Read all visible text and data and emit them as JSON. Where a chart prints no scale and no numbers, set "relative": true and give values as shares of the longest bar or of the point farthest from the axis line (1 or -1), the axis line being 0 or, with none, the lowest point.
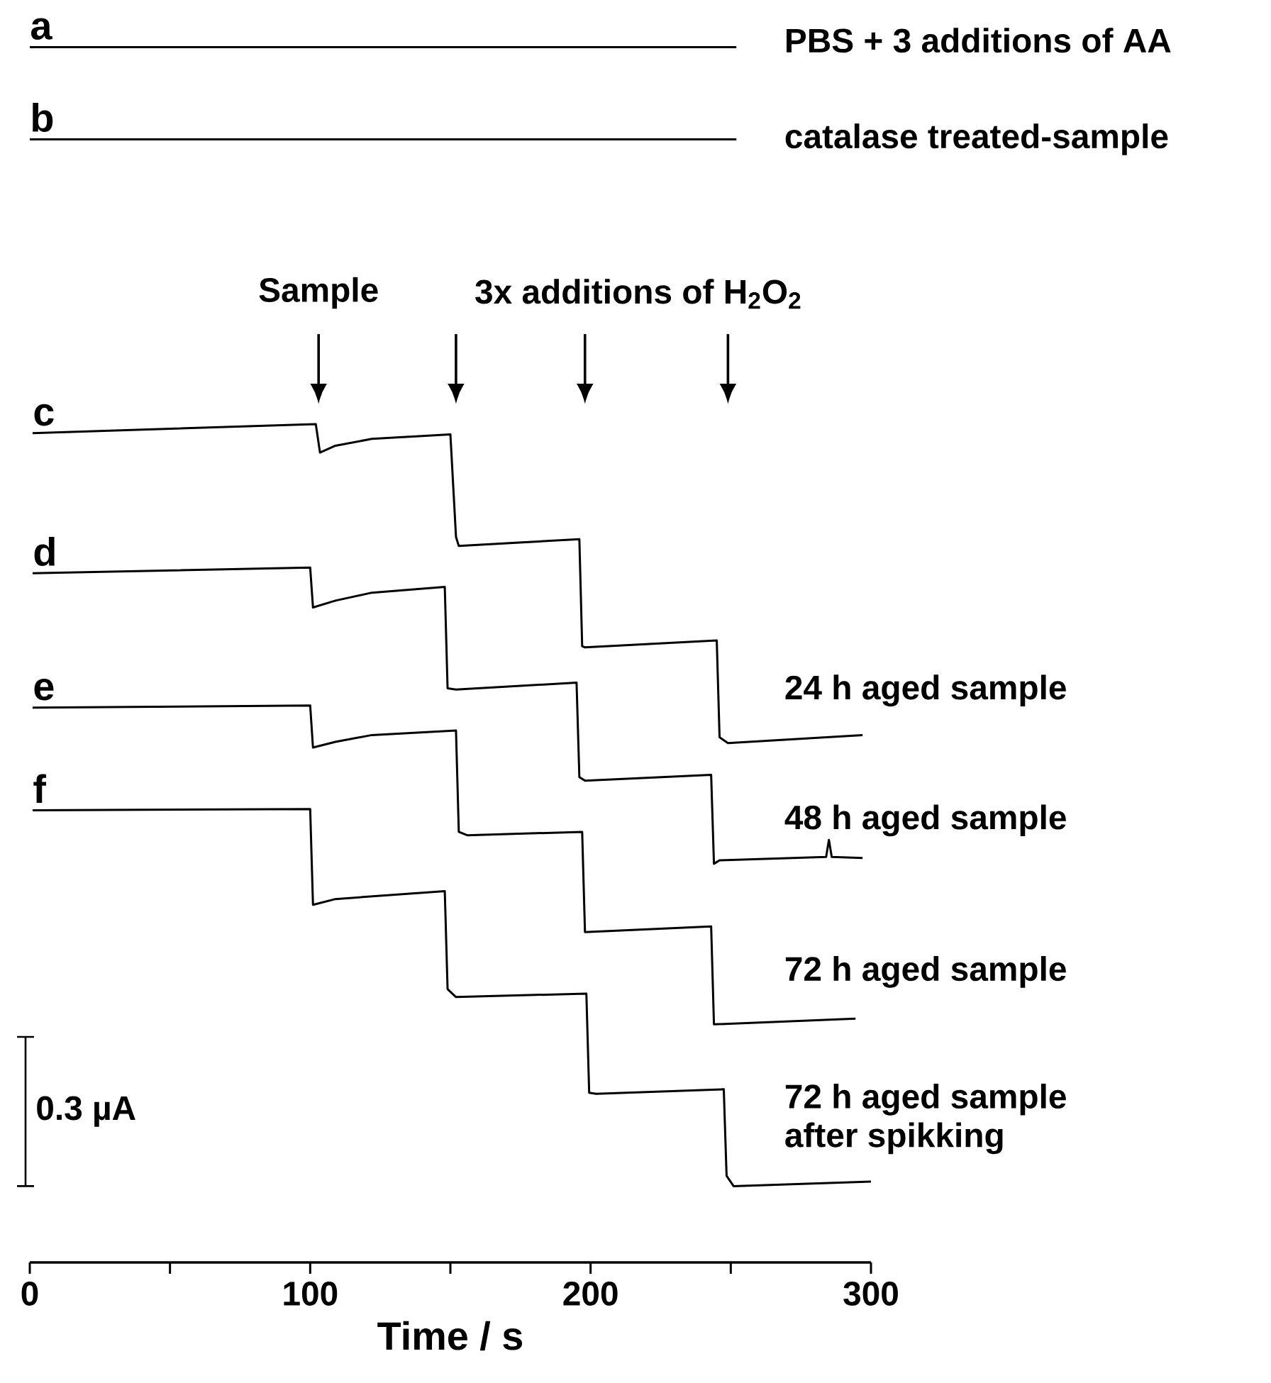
{
  "chart_data": {
    "type": "line",
    "relative": true,
    "xlabel": "Time / s",
    "xlim": [
      0,
      300
    ],
    "xticks": [
      0,
      100,
      200,
      300
    ],
    "series": [
      {
        "name": "a",
        "color": "#000000",
        "x": [
          0,
          126,
          252
        ],
        "values": [
          1.0,
          1.0,
          1.0
        ]
      },
      {
        "name": "b",
        "color": "#000000",
        "x": [
          0,
          126,
          252
        ],
        "values": [
          0.919,
          0.919,
          0.919
        ]
      },
      {
        "name": "c",
        "color": "#000000",
        "x": [
          1,
          102,
          103.5,
          109,
          122,
          150,
          152,
          153,
          196,
          197,
          198,
          245,
          246,
          249,
          297
        ],
        "values": [
          0.661,
          0.669,
          0.644,
          0.65,
          0.656,
          0.66,
          0.57,
          0.562,
          0.568,
          0.474,
          0.473,
          0.479,
          0.394,
          0.389,
          0.396
        ]
      },
      {
        "name": "d",
        "color": "#000000",
        "x": [
          1,
          100,
          101,
          109,
          122,
          148,
          149,
          152,
          195,
          196,
          198,
          243,
          244,
          246,
          284,
          285,
          286,
          297
        ],
        "values": [
          0.538,
          0.543,
          0.508,
          0.514,
          0.521,
          0.526,
          0.437,
          0.436,
          0.442,
          0.359,
          0.356,
          0.361,
          0.283,
          0.286,
          0.289,
          0.304,
          0.289,
          0.288
        ]
      },
      {
        "name": "e",
        "color": "#000000",
        "x": [
          1,
          100,
          101,
          109,
          122,
          152,
          153,
          156,
          197,
          198,
          243,
          244,
          294.5
        ],
        "values": [
          0.42,
          0.422,
          0.385,
          0.39,
          0.396,
          0.4,
          0.311,
          0.308,
          0.311,
          0.223,
          0.228,
          0.142,
          0.147
        ]
      },
      {
        "name": "f",
        "color": "#000000",
        "x": [
          1,
          100,
          101,
          109,
          148,
          149,
          152,
          198.5,
          199.5,
          202,
          247.5,
          248.5,
          251,
          300
        ],
        "values": [
          0.33,
          0.331,
          0.247,
          0.252,
          0.259,
          0.173,
          0.166,
          0.169,
          0.082,
          0.081,
          0.085,
          0.009,
          0.0,
          0.004
        ]
      }
    ],
    "annotations": [
      "Sample",
      "3x additions of H$_{2}$O$_{2}$",
      "0.3 µA",
      "PBS + 3 additions of AA",
      "catalase treated-sample",
      "24 h aged sample",
      "48 h aged sample",
      "72 h aged sample",
      "72 h aged sample",
      "after spikking"
    ]
  }
}
